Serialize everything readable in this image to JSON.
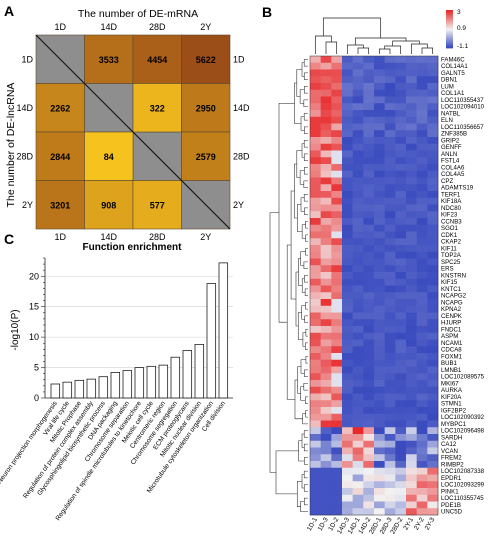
{
  "panels": {
    "a": {
      "letter": "A"
    },
    "b": {
      "letter": "B"
    },
    "c": {
      "letter": "C"
    }
  },
  "chart_data": [
    {
      "type": "heatmap",
      "panel": "A",
      "title": "The number of DE-mRNA",
      "ylabel": "The number of DE-lncRNA",
      "rows": [
        "1D",
        "14D",
        "28D",
        "2Y"
      ],
      "cols": [
        "1D",
        "14D",
        "28D",
        "2Y"
      ],
      "upper": [
        {
          "row": "1D",
          "col": "14D",
          "value": 3533
        },
        {
          "row": "1D",
          "col": "28D",
          "value": 4454
        },
        {
          "row": "1D",
          "col": "2Y",
          "value": 5622
        },
        {
          "row": "14D",
          "col": "28D",
          "value": 322
        },
        {
          "row": "14D",
          "col": "2Y",
          "value": 2950
        },
        {
          "row": "28D",
          "col": "2Y",
          "value": 2579
        }
      ],
      "lower": [
        {
          "row": "14D",
          "col": "1D",
          "value": 2262
        },
        {
          "row": "28D",
          "col": "1D",
          "value": 2844
        },
        {
          "row": "28D",
          "col": "14D",
          "value": 84
        },
        {
          "row": "2Y",
          "col": "1D",
          "value": 3201
        },
        {
          "row": "2Y",
          "col": "14D",
          "value": 908
        },
        {
          "row": "2Y",
          "col": "28D",
          "value": 577
        }
      ]
    },
    {
      "type": "heatmap",
      "panel": "B",
      "scale": {
        "max": "3",
        "mid": "0.9",
        "min": "-1.1"
      },
      "scale_colors": [
        "#e8282a",
        "#f2f2f2",
        "#3a4bbf"
      ],
      "columns": [
        "1D-1",
        "1D-3",
        "1D-2",
        "14D-3",
        "14D-1",
        "14D-2",
        "28D-1",
        "28D-3",
        "28D-2",
        "2Y-1",
        "2Y-2",
        "2Y-3"
      ],
      "genes": [
        "FAM46C",
        "COL14A1",
        "GALNT5",
        "DBN1",
        "LUM",
        "COL1A1",
        "LOC110355437",
        "LOC102094010",
        "NATBL",
        "ELN",
        "LOC110356657",
        "ZNF385B",
        "GRIP2",
        "GENFF",
        "ANLN",
        "FSTL4",
        "COL4A6",
        "COL4A5",
        "CPZ",
        "ADAMTS19",
        "TERF1",
        "KIF18A",
        "NDC80",
        "KIF23",
        "CCNB3",
        "SGO1",
        "CDK1",
        "CKAP2",
        "KIF11",
        "TOP2A",
        "SPC25",
        "ERS",
        "KNSTRN",
        "KIF15",
        "KNTC1",
        "NCAPG2",
        "NCAPG",
        "KPNA2",
        "CENPK",
        "HJURP",
        "FNDC1",
        "ASPM",
        "NCAM1",
        "CDCA8",
        "FOXM1",
        "BUB1",
        "LMNB1",
        "LOC102089575",
        "MKI67",
        "AURKA",
        "KIF20A",
        "STMN1",
        "IGF2BP2",
        "LOC102090392",
        "MYBPC1",
        "LOC102096498",
        "SARDH",
        "CA12",
        "VCAN",
        "FREM2",
        "RIMBP2",
        "LOC102087338",
        "EPDR1",
        "LOC102093299",
        "PINK1",
        "LOC110355745",
        "PDE1B",
        "UNC5D"
      ]
    },
    {
      "type": "bar",
      "panel": "C",
      "title": "Function enrichment",
      "ylabel": "-log10(P)",
      "ylim": [
        0,
        23
      ],
      "yticks": [
        0,
        5,
        10,
        15,
        20
      ],
      "categories": [
        "Neuron projection morphogenesis",
        "Viral life cycle",
        "Mitotic Prophase",
        "Regulation of protein complex assembly",
        "Glycosphingolipid biosynthetic process",
        "DNA packaging",
        "Chromosome separation",
        "Regulation of spindle microtubules to kinetochore",
        "Meiotic cell cycle",
        "Centromeric region",
        "Chromosome segregation",
        "ECM proteoglycans",
        "Mitotic nuclear division",
        "Microtubule cytoskeleton organization",
        "Cell division"
      ],
      "values": [
        2.3,
        2.6,
        2.9,
        3.1,
        3.5,
        4.2,
        4.5,
        5.0,
        5.2,
        5.4,
        6.7,
        7.8,
        8.8,
        18.8,
        22.2
      ]
    }
  ]
}
